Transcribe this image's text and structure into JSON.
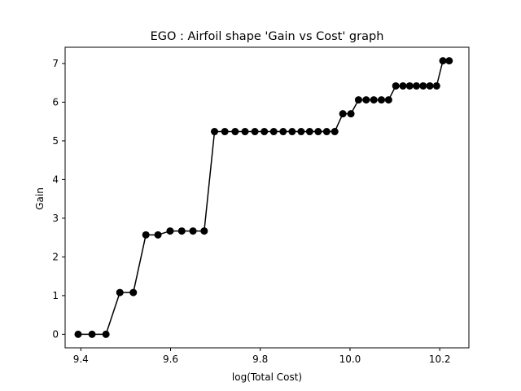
{
  "chart_data": {
    "type": "line",
    "title": "EGO : Airfoil shape 'Gain vs Cost' graph",
    "xlabel": "log(Total Cost)",
    "ylabel": "Gain",
    "xlim": [
      9.365,
      10.265
    ],
    "ylim": [
      -0.35,
      7.42
    ],
    "xticks": [
      9.4,
      9.6,
      9.8,
      10.0,
      10.2
    ],
    "xtick_labels": [
      "9.4",
      "9.6",
      "9.8",
      "10.0",
      "10.2"
    ],
    "yticks": [
      0,
      1,
      2,
      3,
      4,
      5,
      6,
      7
    ],
    "ytick_labels": [
      "0",
      "1",
      "2",
      "3",
      "4",
      "5",
      "6",
      "7"
    ],
    "grid": false,
    "series": [
      {
        "color": "#000000",
        "marker": "circle",
        "x": [
          9.394,
          9.425,
          9.456,
          9.487,
          9.517,
          9.545,
          9.572,
          9.599,
          9.625,
          9.65,
          9.675,
          9.698,
          9.721,
          9.744,
          9.766,
          9.788,
          9.809,
          9.83,
          9.851,
          9.871,
          9.891,
          9.91,
          9.929,
          9.948,
          9.966,
          9.984,
          10.002,
          10.019,
          10.036,
          10.053,
          10.07,
          10.086,
          10.102,
          10.118,
          10.133,
          10.148,
          10.163,
          10.178,
          10.193,
          10.207,
          10.221
        ],
        "y": [
          0.0,
          0.0,
          0.0,
          1.08,
          1.08,
          2.57,
          2.57,
          2.67,
          2.67,
          2.67,
          2.67,
          5.24,
          5.24,
          5.24,
          5.24,
          5.24,
          5.24,
          5.24,
          5.24,
          5.24,
          5.24,
          5.24,
          5.24,
          5.24,
          5.24,
          5.7,
          5.7,
          6.06,
          6.06,
          6.06,
          6.06,
          6.06,
          6.42,
          6.42,
          6.42,
          6.42,
          6.42,
          6.42,
          6.42,
          7.07,
          7.07
        ]
      }
    ]
  }
}
